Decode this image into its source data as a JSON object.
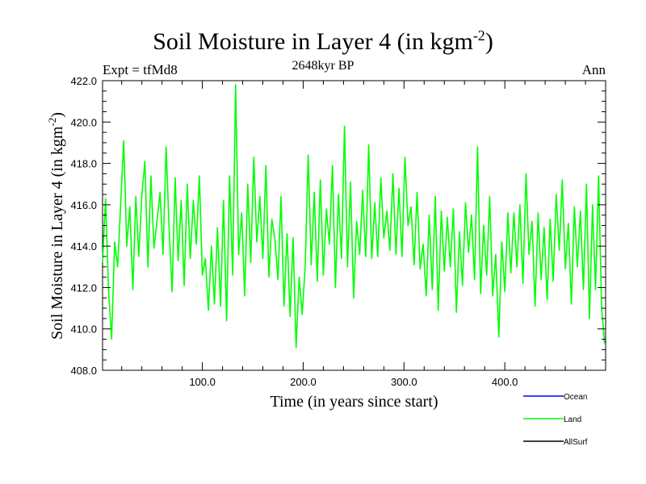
{
  "chart_data": {
    "type": "line",
    "title": "Soil Moisture in Layer 4 (in kgm",
    "title_sup": "-2",
    "title_end": ")",
    "subtitle": "2648kyr BP",
    "left_label": "Expt = tfMd8",
    "right_label": "Ann",
    "xlabel": "Time (in years since start)",
    "ylabel": "Soil Moisture in Layer 4 (in kgm",
    "ylabel_sup": "-2",
    "ylabel_end": ")",
    "xlim": [
      1,
      500
    ],
    "ylim": [
      408,
      422
    ],
    "xticks": [
      100,
      200,
      300,
      400
    ],
    "xtick_labels": [
      "100.0",
      "200.0",
      "300.0",
      "400.0"
    ],
    "yticks": [
      408,
      410,
      412,
      414,
      416,
      418,
      420,
      422
    ],
    "ytick_labels": [
      "408.0",
      "410.0",
      "412.0",
      "414.0",
      "416.0",
      "418.0",
      "420.0",
      "422.0"
    ],
    "legend": [
      {
        "name": "Ocean",
        "color": "#0000ff"
      },
      {
        "name": "Land",
        "color": "#00ff00"
      },
      {
        "name": "AllSurf",
        "color": "#000000"
      }
    ],
    "series": [
      {
        "name": "Land",
        "color": "#00ff00",
        "x": [
          1,
          4,
          7,
          10,
          13,
          16,
          19,
          22,
          25,
          28,
          31,
          34,
          37,
          40,
          43,
          46,
          49,
          52,
          55,
          58,
          61,
          64,
          67,
          70,
          73,
          76,
          79,
          82,
          85,
          88,
          91,
          94,
          97,
          100,
          103,
          106,
          109,
          112,
          115,
          118,
          121,
          124,
          127,
          130,
          133,
          136,
          139,
          142,
          145,
          148,
          151,
          154,
          157,
          160,
          163,
          166,
          169,
          172,
          175,
          178,
          181,
          184,
          187,
          190,
          193,
          196,
          199,
          202,
          205,
          208,
          211,
          214,
          217,
          220,
          223,
          226,
          229,
          232,
          235,
          238,
          241,
          244,
          247,
          250,
          253,
          256,
          259,
          262,
          265,
          268,
          271,
          274,
          277,
          280,
          283,
          286,
          289,
          292,
          295,
          298,
          301,
          304,
          307,
          310,
          313,
          316,
          319,
          322,
          325,
          328,
          331,
          334,
          337,
          340,
          343,
          346,
          349,
          352,
          355,
          358,
          361,
          364,
          367,
          370,
          373,
          376,
          379,
          382,
          385,
          388,
          391,
          394,
          397,
          400,
          403,
          406,
          409,
          412,
          415,
          418,
          421,
          424,
          427,
          430,
          433,
          436,
          439,
          442,
          445,
          448,
          451,
          454,
          457,
          460,
          463,
          466,
          469,
          472,
          475,
          478,
          481,
          484,
          487,
          490,
          493,
          496,
          499
        ],
        "values": [
          413.2,
          416.3,
          411.8,
          409.5,
          414.2,
          413.0,
          416.1,
          419.1,
          414.0,
          415.9,
          411.9,
          416.4,
          413.5,
          416.5,
          418.1,
          413.0,
          417.4,
          413.9,
          415.2,
          416.6,
          413.6,
          418.8,
          414.9,
          411.8,
          417.3,
          413.3,
          416.2,
          412.1,
          417.0,
          413.4,
          416.2,
          414.1,
          417.4,
          412.6,
          413.4,
          410.9,
          414.0,
          411.2,
          414.9,
          411.1,
          416.2,
          410.4,
          417.4,
          412.6,
          421.8,
          413.6,
          415.6,
          411.6,
          417.0,
          413.2,
          418.3,
          414.2,
          416.4,
          413.4,
          417.9,
          412.5,
          415.3,
          414.3,
          412.4,
          416.4,
          411.1,
          414.6,
          410.6,
          414.4,
          409.1,
          412.5,
          410.7,
          413.0,
          418.4,
          413.1,
          416.6,
          412.3,
          417.2,
          412.6,
          415.8,
          414.1,
          417.9,
          412.0,
          416.5,
          413.4,
          419.8,
          413.0,
          417.1,
          411.5,
          415.2,
          413.6,
          416.7,
          413.5,
          418.9,
          413.4,
          416.1,
          413.5,
          417.3,
          414.4,
          415.7,
          413.8,
          417.5,
          413.6,
          416.8,
          413.5,
          418.3,
          415.0,
          415.9,
          413.1,
          416.6,
          412.9,
          414.1,
          411.6,
          415.5,
          411.9,
          416.4,
          410.9,
          415.7,
          412.8,
          415.4,
          413.0,
          415.8,
          410.8,
          414.7,
          412.1,
          416.1,
          413.7,
          415.5,
          412.4,
          418.8,
          411.7,
          415.0,
          412.6,
          416.4,
          411.6,
          413.6,
          409.6,
          414.2,
          411.8,
          415.6,
          412.7,
          415.6,
          413.0,
          416.0,
          412.2,
          417.5,
          413.6,
          415.2,
          411.1,
          415.6,
          412.4,
          414.9,
          411.4,
          415.3,
          412.3,
          416.5,
          413.8,
          417.2,
          412.9,
          415.1,
          411.2,
          415.9,
          413.0,
          415.7,
          411.9,
          417.0,
          410.5,
          416.0,
          411.9,
          417.4,
          411.0,
          409.3
        ]
      }
    ]
  }
}
